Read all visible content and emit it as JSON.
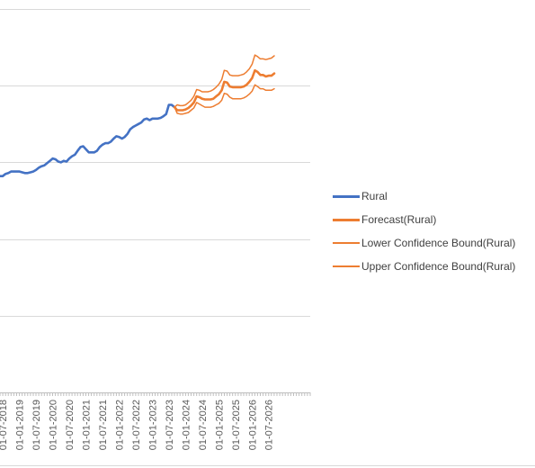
{
  "chart_data": {
    "type": "line",
    "title": "",
    "xlabel": "",
    "ylabel": "",
    "x_tick_labels": [
      "01-07-2018",
      "01-01-2019",
      "01-07-2019",
      "01-01-2020",
      "01-07-2020",
      "01-01-2021",
      "01-07-2021",
      "01-01-2022",
      "01-07-2022",
      "01-01-2023",
      "01-07-2023",
      "01-01-2024",
      "01-07-2024",
      "01-01-2025",
      "01-07-2025",
      "01-01-2026",
      "01-07-2026"
    ],
    "ylim": [
      0,
      5
    ],
    "grid": true,
    "legend_position": "right",
    "series": [
      {
        "name": "Rural",
        "color": "#4472c4",
        "points": [
          {
            "x": "2018-06",
            "y": 2.82
          },
          {
            "x": "2018-07",
            "y": 2.82
          },
          {
            "x": "2018-08",
            "y": 2.85
          },
          {
            "x": "2018-09",
            "y": 2.86
          },
          {
            "x": "2018-10",
            "y": 2.88
          },
          {
            "x": "2018-11",
            "y": 2.88
          },
          {
            "x": "2018-12",
            "y": 2.88
          },
          {
            "x": "2019-01",
            "y": 2.88
          },
          {
            "x": "2019-02",
            "y": 2.87
          },
          {
            "x": "2019-03",
            "y": 2.86
          },
          {
            "x": "2019-04",
            "y": 2.86
          },
          {
            "x": "2019-05",
            "y": 2.87
          },
          {
            "x": "2019-06",
            "y": 2.88
          },
          {
            "x": "2019-07",
            "y": 2.9
          },
          {
            "x": "2019-08",
            "y": 2.93
          },
          {
            "x": "2019-09",
            "y": 2.95
          },
          {
            "x": "2019-10",
            "y": 2.96
          },
          {
            "x": "2019-11",
            "y": 2.99
          },
          {
            "x": "2019-12",
            "y": 3.02
          },
          {
            "x": "2020-01",
            "y": 3.05
          },
          {
            "x": "2020-02",
            "y": 3.04
          },
          {
            "x": "2020-03",
            "y": 3.01
          },
          {
            "x": "2020-04",
            "y": 3.0
          },
          {
            "x": "2020-05",
            "y": 3.02
          },
          {
            "x": "2020-06",
            "y": 3.01
          },
          {
            "x": "2020-07",
            "y": 3.05
          },
          {
            "x": "2020-08",
            "y": 3.08
          },
          {
            "x": "2020-09",
            "y": 3.1
          },
          {
            "x": "2020-10",
            "y": 3.15
          },
          {
            "x": "2020-11",
            "y": 3.2
          },
          {
            "x": "2020-12",
            "y": 3.21
          },
          {
            "x": "2021-01",
            "y": 3.17
          },
          {
            "x": "2021-02",
            "y": 3.13
          },
          {
            "x": "2021-03",
            "y": 3.13
          },
          {
            "x": "2021-04",
            "y": 3.13
          },
          {
            "x": "2021-05",
            "y": 3.15
          },
          {
            "x": "2021-06",
            "y": 3.2
          },
          {
            "x": "2021-07",
            "y": 3.23
          },
          {
            "x": "2021-08",
            "y": 3.25
          },
          {
            "x": "2021-09",
            "y": 3.25
          },
          {
            "x": "2021-10",
            "y": 3.27
          },
          {
            "x": "2021-11",
            "y": 3.31
          },
          {
            "x": "2021-12",
            "y": 3.34
          },
          {
            "x": "2022-01",
            "y": 3.33
          },
          {
            "x": "2022-02",
            "y": 3.31
          },
          {
            "x": "2022-03",
            "y": 3.33
          },
          {
            "x": "2022-04",
            "y": 3.37
          },
          {
            "x": "2022-05",
            "y": 3.43
          },
          {
            "x": "2022-06",
            "y": 3.46
          },
          {
            "x": "2022-07",
            "y": 3.48
          },
          {
            "x": "2022-08",
            "y": 3.5
          },
          {
            "x": "2022-09",
            "y": 3.52
          },
          {
            "x": "2022-10",
            "y": 3.56
          },
          {
            "x": "2022-11",
            "y": 3.57
          },
          {
            "x": "2022-12",
            "y": 3.55
          },
          {
            "x": "2023-01",
            "y": 3.57
          },
          {
            "x": "2023-02",
            "y": 3.57
          },
          {
            "x": "2023-03",
            "y": 3.57
          },
          {
            "x": "2023-04",
            "y": 3.58
          },
          {
            "x": "2023-05",
            "y": 3.6
          },
          {
            "x": "2023-06",
            "y": 3.63
          },
          {
            "x": "2023-07",
            "y": 3.75
          },
          {
            "x": "2023-08",
            "y": 3.75
          },
          {
            "x": "2023-09",
            "y": 3.72
          }
        ]
      },
      {
        "name": "Forecast(Rural)",
        "color": "#ed7d31",
        "points": [
          {
            "x": "2023-09",
            "y": 3.72
          },
          {
            "x": "2023-10",
            "y": 3.68
          },
          {
            "x": "2023-11",
            "y": 3.68
          },
          {
            "x": "2023-12",
            "y": 3.68
          },
          {
            "x": "2024-01",
            "y": 3.69
          },
          {
            "x": "2024-02",
            "y": 3.71
          },
          {
            "x": "2024-03",
            "y": 3.74
          },
          {
            "x": "2024-04",
            "y": 3.78
          },
          {
            "x": "2024-05",
            "y": 3.86
          },
          {
            "x": "2024-06",
            "y": 3.85
          },
          {
            "x": "2024-07",
            "y": 3.83
          },
          {
            "x": "2024-08",
            "y": 3.82
          },
          {
            "x": "2024-09",
            "y": 3.82
          },
          {
            "x": "2024-10",
            "y": 3.82
          },
          {
            "x": "2024-11",
            "y": 3.83
          },
          {
            "x": "2024-12",
            "y": 3.86
          },
          {
            "x": "2025-01",
            "y": 3.89
          },
          {
            "x": "2025-02",
            "y": 3.94
          },
          {
            "x": "2025-03",
            "y": 4.05
          },
          {
            "x": "2025-04",
            "y": 4.04
          },
          {
            "x": "2025-05",
            "y": 3.99
          },
          {
            "x": "2025-06",
            "y": 3.98
          },
          {
            "x": "2025-07",
            "y": 3.98
          },
          {
            "x": "2025-08",
            "y": 3.98
          },
          {
            "x": "2025-09",
            "y": 3.98
          },
          {
            "x": "2025-10",
            "y": 3.99
          },
          {
            "x": "2025-11",
            "y": 4.01
          },
          {
            "x": "2025-12",
            "y": 4.05
          },
          {
            "x": "2026-01",
            "y": 4.1
          },
          {
            "x": "2026-02",
            "y": 4.2
          },
          {
            "x": "2026-03",
            "y": 4.18
          },
          {
            "x": "2026-04",
            "y": 4.14
          },
          {
            "x": "2026-05",
            "y": 4.14
          },
          {
            "x": "2026-06",
            "y": 4.12
          },
          {
            "x": "2026-07",
            "y": 4.13
          },
          {
            "x": "2026-08",
            "y": 4.13
          },
          {
            "x": "2026-09",
            "y": 4.16
          }
        ]
      },
      {
        "name": "Lower Confidence Bound(Rural)",
        "color": "#ed7d31",
        "points": [
          {
            "x": "2023-09",
            "y": 3.72
          },
          {
            "x": "2023-10",
            "y": 3.64
          },
          {
            "x": "2023-11",
            "y": 3.63
          },
          {
            "x": "2023-12",
            "y": 3.63
          },
          {
            "x": "2024-01",
            "y": 3.64
          },
          {
            "x": "2024-02",
            "y": 3.65
          },
          {
            "x": "2024-03",
            "y": 3.68
          },
          {
            "x": "2024-04",
            "y": 3.71
          },
          {
            "x": "2024-05",
            "y": 3.78
          },
          {
            "x": "2024-06",
            "y": 3.76
          },
          {
            "x": "2024-07",
            "y": 3.74
          },
          {
            "x": "2024-08",
            "y": 3.72
          },
          {
            "x": "2024-09",
            "y": 3.72
          },
          {
            "x": "2024-10",
            "y": 3.72
          },
          {
            "x": "2024-11",
            "y": 3.73
          },
          {
            "x": "2024-12",
            "y": 3.75
          },
          {
            "x": "2025-01",
            "y": 3.77
          },
          {
            "x": "2025-02",
            "y": 3.81
          },
          {
            "x": "2025-03",
            "y": 3.9
          },
          {
            "x": "2025-04",
            "y": 3.89
          },
          {
            "x": "2025-05",
            "y": 3.85
          },
          {
            "x": "2025-06",
            "y": 3.83
          },
          {
            "x": "2025-07",
            "y": 3.83
          },
          {
            "x": "2025-08",
            "y": 3.83
          },
          {
            "x": "2025-09",
            "y": 3.83
          },
          {
            "x": "2025-10",
            "y": 3.84
          },
          {
            "x": "2025-11",
            "y": 3.86
          },
          {
            "x": "2025-12",
            "y": 3.89
          },
          {
            "x": "2026-01",
            "y": 3.93
          },
          {
            "x": "2026-02",
            "y": 4.01
          },
          {
            "x": "2026-03",
            "y": 3.99
          },
          {
            "x": "2026-04",
            "y": 3.96
          },
          {
            "x": "2026-05",
            "y": 3.96
          },
          {
            "x": "2026-06",
            "y": 3.94
          },
          {
            "x": "2026-07",
            "y": 3.94
          },
          {
            "x": "2026-08",
            "y": 3.94
          },
          {
            "x": "2026-09",
            "y": 3.96
          }
        ]
      },
      {
        "name": "Upper Confidence Bound(Rural)",
        "color": "#ed7d31",
        "points": [
          {
            "x": "2023-09",
            "y": 3.72
          },
          {
            "x": "2023-10",
            "y": 3.75
          },
          {
            "x": "2023-11",
            "y": 3.74
          },
          {
            "x": "2023-12",
            "y": 3.74
          },
          {
            "x": "2024-01",
            "y": 3.75
          },
          {
            "x": "2024-02",
            "y": 3.78
          },
          {
            "x": "2024-03",
            "y": 3.81
          },
          {
            "x": "2024-04",
            "y": 3.86
          },
          {
            "x": "2024-05",
            "y": 3.95
          },
          {
            "x": "2024-06",
            "y": 3.94
          },
          {
            "x": "2024-07",
            "y": 3.92
          },
          {
            "x": "2024-08",
            "y": 3.92
          },
          {
            "x": "2024-09",
            "y": 3.92
          },
          {
            "x": "2024-10",
            "y": 3.93
          },
          {
            "x": "2024-11",
            "y": 3.95
          },
          {
            "x": "2024-12",
            "y": 3.98
          },
          {
            "x": "2025-01",
            "y": 4.02
          },
          {
            "x": "2025-02",
            "y": 4.08
          },
          {
            "x": "2025-03",
            "y": 4.2
          },
          {
            "x": "2025-04",
            "y": 4.19
          },
          {
            "x": "2025-05",
            "y": 4.14
          },
          {
            "x": "2025-06",
            "y": 4.13
          },
          {
            "x": "2025-07",
            "y": 4.13
          },
          {
            "x": "2025-08",
            "y": 4.13
          },
          {
            "x": "2025-09",
            "y": 4.14
          },
          {
            "x": "2025-10",
            "y": 4.15
          },
          {
            "x": "2025-11",
            "y": 4.18
          },
          {
            "x": "2025-12",
            "y": 4.22
          },
          {
            "x": "2026-01",
            "y": 4.28
          },
          {
            "x": "2026-02",
            "y": 4.4
          },
          {
            "x": "2026-03",
            "y": 4.38
          },
          {
            "x": "2026-04",
            "y": 4.35
          },
          {
            "x": "2026-05",
            "y": 4.35
          },
          {
            "x": "2026-06",
            "y": 4.34
          },
          {
            "x": "2026-07",
            "y": 4.35
          },
          {
            "x": "2026-08",
            "y": 4.36
          },
          {
            "x": "2026-09",
            "y": 4.39
          }
        ]
      }
    ]
  },
  "legend": {
    "items": [
      {
        "label": "Rural",
        "color": "#4472c4",
        "weight": "thick"
      },
      {
        "label": "Forecast(Rural)",
        "color": "#ed7d31",
        "weight": "thick"
      },
      {
        "label": "Lower Confidence Bound(Rural)",
        "color": "#ed7d31",
        "weight": "thin"
      },
      {
        "label": "Upper Confidence Bound(Rural)",
        "color": "#ed7d31",
        "weight": "thin"
      }
    ]
  },
  "colors": {
    "gridline": "#d9d9d9",
    "axis": "#bfbfbf",
    "tick_text": "#595959"
  }
}
